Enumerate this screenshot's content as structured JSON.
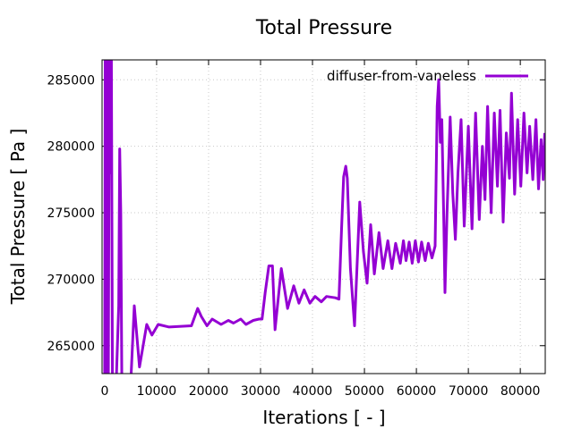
{
  "chart_data": {
    "type": "line",
    "title": "Total Pressure",
    "xlabel": "Iterations [ - ]",
    "ylabel": "Total Pressure [ Pa ]",
    "xlim": [
      -500,
      84800
    ],
    "ylim": [
      262900,
      286500
    ],
    "grid": true,
    "legend_placement": "top-right",
    "xticks": [
      0,
      10000,
      20000,
      30000,
      40000,
      50000,
      60000,
      70000,
      80000
    ],
    "xtick_labels": [
      "0",
      "10000",
      "20000",
      "30000",
      "40000",
      "50000",
      "60000",
      "70000",
      "80000"
    ],
    "yticks": [
      265000,
      270000,
      275000,
      280000,
      285000
    ],
    "ytick_labels": [
      "265000",
      "270000",
      "275000",
      "280000",
      "285000"
    ],
    "series": [
      {
        "name": "diffuser-from-vaneless",
        "color": "#9400d3",
        "x": [
          0,
          100,
          300,
          500,
          700,
          900,
          1100,
          1300,
          1500,
          2200,
          2700,
          2900,
          3100,
          3300,
          5000,
          5700,
          6700,
          8100,
          9100,
          10300,
          12400,
          16700,
          17900,
          18600,
          19700,
          20700,
          22400,
          23800,
          24800,
          26200,
          27200,
          28600,
          29700,
          30300,
          30900,
          31600,
          32300,
          32800,
          34000,
          35200,
          36400,
          37400,
          38400,
          39500,
          40500,
          41700,
          42700,
          44400,
          45100,
          45600,
          46000,
          46400,
          46700,
          47300,
          48100,
          49100,
          49800,
          50500,
          51200,
          51900,
          52800,
          53600,
          54500,
          55300,
          56000,
          56900,
          57500,
          58000,
          58600,
          59200,
          59800,
          60400,
          61000,
          61700,
          62300,
          63000,
          63600,
          64000,
          64300,
          64600,
          64900,
          65300,
          65500,
          65900,
          66500,
          67000,
          67500,
          68000,
          68600,
          69200,
          70000,
          70700,
          71400,
          72100,
          72700,
          73200,
          73700,
          74400,
          75000,
          75600,
          76100,
          76700,
          77300,
          77900,
          78300,
          78900,
          79500,
          80100,
          80700,
          81300,
          81800,
          82400,
          83000,
          83500,
          84000,
          84400,
          84700
        ],
        "y": [
          262000,
          287000,
          262000,
          287000,
          262000,
          287000,
          278000,
          287000,
          262000,
          262000,
          268000,
          279800,
          275000,
          262000,
          262000,
          268000,
          263400,
          266600,
          265800,
          266600,
          266400,
          266500,
          267800,
          267200,
          266500,
          267000,
          266600,
          266900,
          266700,
          267000,
          266600,
          266900,
          267000,
          267000,
          269000,
          271000,
          271000,
          266200,
          270800,
          267800,
          269500,
          268200,
          269200,
          268200,
          268700,
          268300,
          268700,
          268600,
          268500,
          273800,
          277700,
          278500,
          277600,
          270800,
          266500,
          275800,
          272100,
          269700,
          274100,
          270400,
          273500,
          270800,
          272900,
          270800,
          272700,
          271200,
          272900,
          271400,
          272800,
          271200,
          272900,
          271300,
          272800,
          271400,
          272700,
          271600,
          272500,
          283000,
          285000,
          280300,
          282000,
          274000,
          269000,
          275000,
          282200,
          276500,
          273000,
          278000,
          282000,
          274000,
          281500,
          273800,
          282500,
          274500,
          280000,
          276000,
          283000,
          275000,
          282500,
          277000,
          282700,
          274300,
          281000,
          277600,
          284000,
          276400,
          282000,
          277000,
          282500,
          278000,
          281500,
          277500,
          282000,
          276800,
          280500,
          277500,
          281000
        ]
      }
    ]
  }
}
